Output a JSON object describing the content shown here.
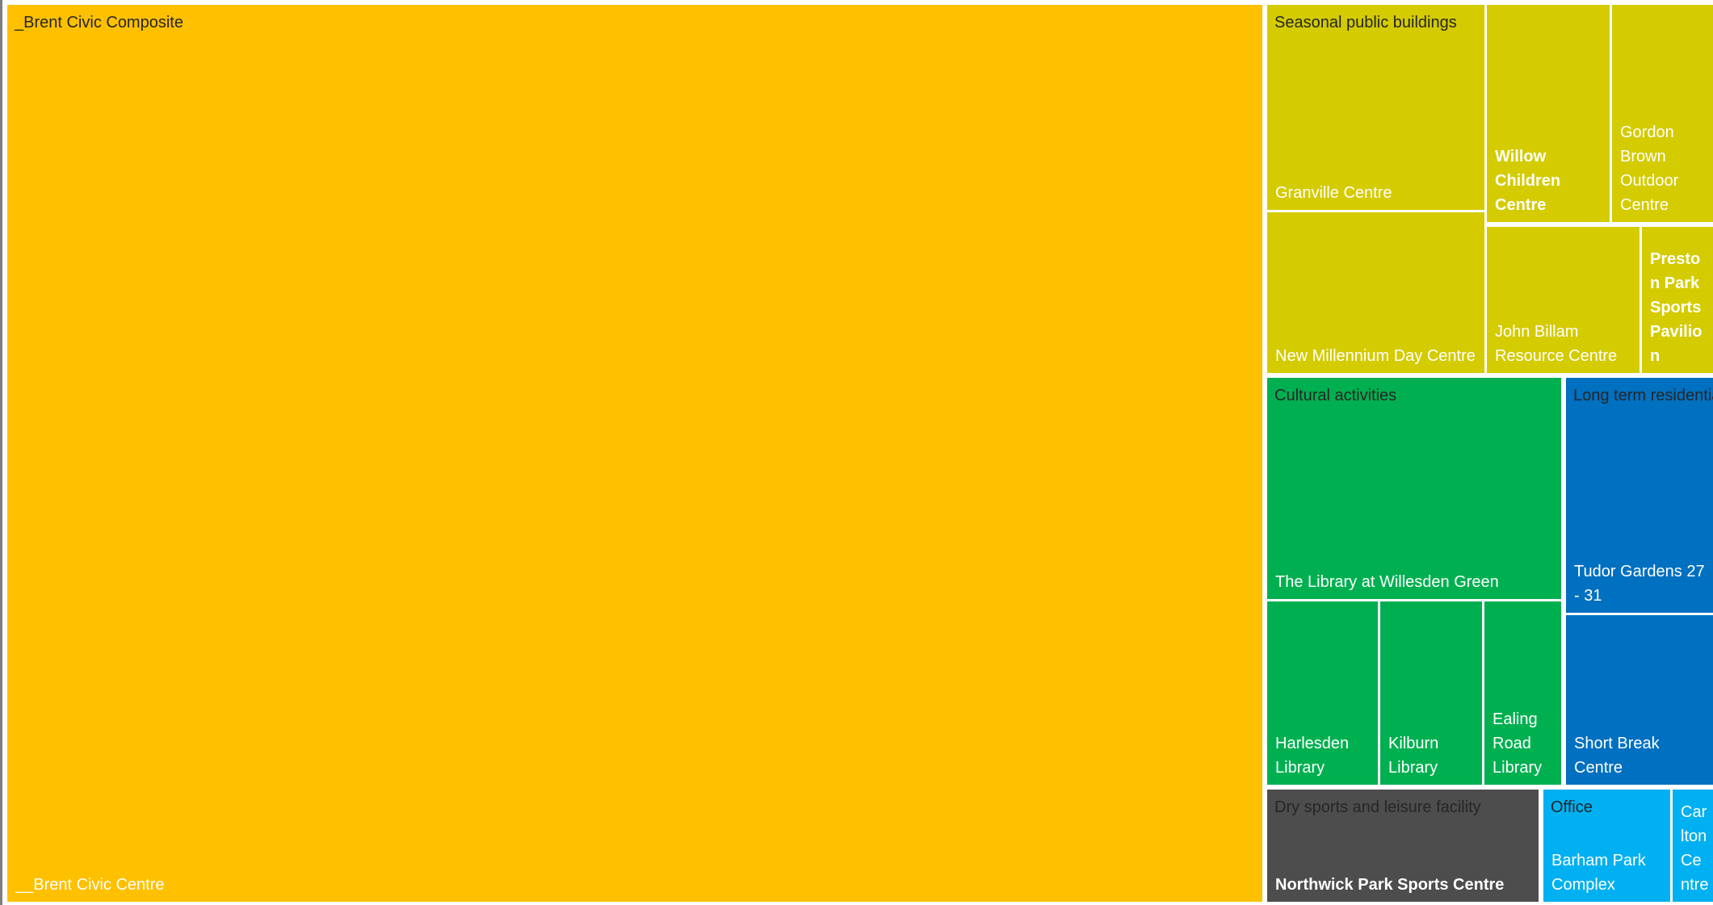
{
  "chart_data": {
    "type": "treemap",
    "groups": [
      {
        "name": "_Brent Civic Composite",
        "color": "#FFC000",
        "label_color": "#262626",
        "items": [
          {
            "label": "__Brent Civic Centre"
          }
        ]
      },
      {
        "name": "Seasonal public buildings",
        "color": "#D4CB00",
        "label_color": "#262626",
        "items": [
          {
            "label": "Granville Centre"
          },
          {
            "label": "New Millennium Day Centre"
          },
          {
            "label": "Willow Children Centre"
          },
          {
            "label": "Gordon Brown Outdoor Centre"
          },
          {
            "label": "John Billam Resource Centre"
          },
          {
            "label": "Preston Park Sports Pavilion"
          }
        ]
      },
      {
        "name": "Cultural activities",
        "color": "#00B050",
        "label_color": "#262626",
        "items": [
          {
            "label": "The Library at Willesden Green"
          },
          {
            "label": "Harlesden Library"
          },
          {
            "label": "Kilburn Library"
          },
          {
            "label": "Ealing Road Library"
          }
        ]
      },
      {
        "name": "Long term residential",
        "color": "#0070C0",
        "label_color": "#262626",
        "items": [
          {
            "label": "Tudor Gardens 27 - 31"
          },
          {
            "label": "Short Break Centre"
          }
        ]
      },
      {
        "name": "Dry sports and leisure facility",
        "color": "#4D4D4D",
        "label_color": "#262626",
        "items": [
          {
            "label": "Northwick Park Sports Centre"
          }
        ]
      },
      {
        "name": "Office",
        "color": "#00B0F0",
        "label_color": "#262626",
        "items": [
          {
            "label": "Barham Park Complex"
          },
          {
            "label": "Carlton Centre"
          }
        ]
      }
    ]
  }
}
